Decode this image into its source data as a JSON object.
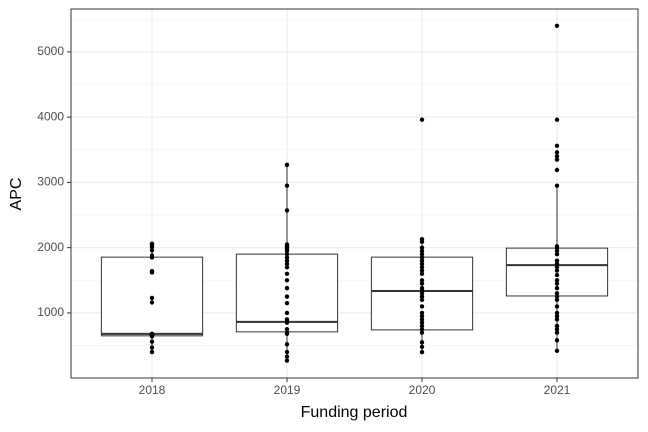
{
  "chart_data": {
    "type": "box",
    "x_label": "Funding period",
    "y_label": "APC",
    "categories": [
      "2018",
      "2019",
      "2020",
      "2021"
    ],
    "boxes": [
      {
        "whislo": 400,
        "q1": 649,
        "median": 680,
        "q3": 1855,
        "whishi": 2060
      },
      {
        "whislo": 270,
        "q1": 710,
        "median": 863,
        "q3": 1901,
        "whishi": 3270
      },
      {
        "whislo": 400,
        "q1": 740,
        "median": 1336,
        "q3": 1855,
        "whishi": 2130
      },
      {
        "whislo": 420,
        "q1": 1260,
        "median": 1733,
        "q3": 1993,
        "whishi": 2950
      }
    ],
    "points": [
      [
        2060,
        2040,
        2010,
        1960,
        1880,
        1850,
        1640,
        1620,
        1230,
        1160,
        680,
        660,
        650,
        640,
        560,
        470,
        400
      ],
      [
        3270,
        2950,
        2570,
        2050,
        2020,
        2000,
        1980,
        1950,
        1900,
        1850,
        1800,
        1750,
        1700,
        1600,
        1500,
        1380,
        1250,
        1150,
        1000,
        900,
        870,
        850,
        750,
        700,
        680,
        520,
        400,
        330,
        270
      ],
      [
        3960,
        2130,
        2090,
        2000,
        1950,
        1900,
        1850,
        1800,
        1750,
        1700,
        1650,
        1600,
        1500,
        1450,
        1380,
        1340,
        1300,
        1250,
        1200,
        1100,
        1000,
        950,
        900,
        850,
        800,
        750,
        700,
        550,
        480,
        400
      ],
      [
        5400,
        3960,
        3560,
        3460,
        3400,
        3350,
        3190,
        2950,
        2020,
        1990,
        1950,
        1900,
        1800,
        1750,
        1700,
        1650,
        1580,
        1500,
        1450,
        1380,
        1300,
        1250,
        1200,
        1100,
        1000,
        950,
        900,
        800,
        750,
        700,
        580,
        420
      ]
    ],
    "ylim": [
      3,
      5657
    ],
    "yticks": [
      1000,
      2000,
      3000,
      4000,
      5000
    ],
    "yminor": [
      500,
      1500,
      2500,
      3500,
      4500,
      5500
    ],
    "grid": true,
    "box_color": "#333333",
    "box_fill": "#ffffff",
    "point_color": "#000000"
  }
}
